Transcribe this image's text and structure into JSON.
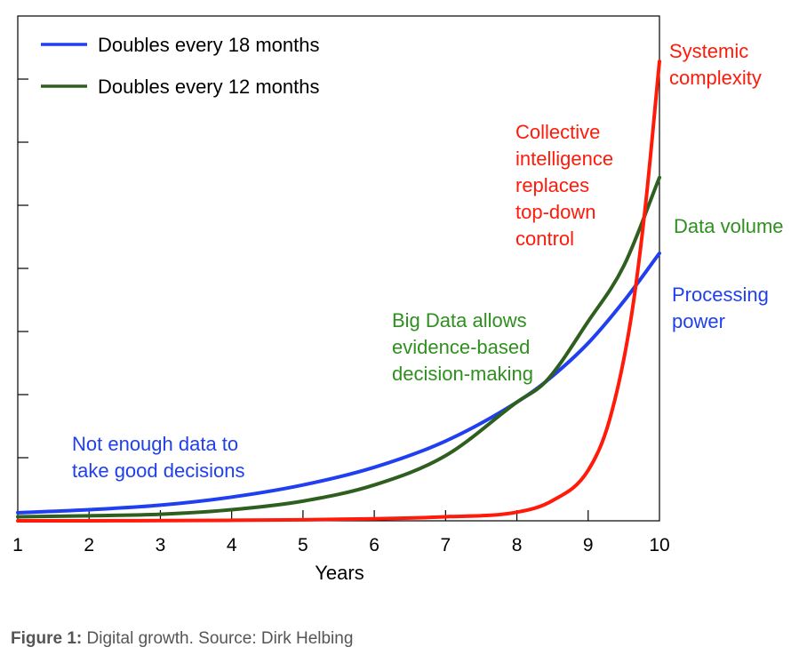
{
  "chart_data": {
    "type": "line",
    "xlabel": "Years",
    "ylabel": "",
    "xlim": [
      1,
      10
    ],
    "ylim": [
      0,
      1
    ],
    "x_ticks": [
      1,
      2,
      3,
      4,
      5,
      6,
      7,
      8,
      9,
      10
    ],
    "grid": false,
    "legend_position": "top-left",
    "legend": [
      {
        "label": "Doubles every 18 months",
        "color": "#1f3ff0"
      },
      {
        "label": "Doubles every 12 months",
        "color": "#2f5f1f"
      }
    ],
    "series": [
      {
        "label": "Processing power",
        "color": "#1f3ff0",
        "x": [
          1,
          2,
          3,
          4,
          5,
          6,
          7,
          8,
          8.4,
          9,
          9.5,
          10
        ],
        "y": [
          0.016,
          0.022,
          0.031,
          0.047,
          0.071,
          0.106,
          0.158,
          0.235,
          0.275,
          0.352,
          0.435,
          0.53
        ]
      },
      {
        "label": "Data volume",
        "color": "#2f5f1f",
        "x": [
          1,
          2,
          3,
          4,
          5,
          6,
          7,
          8,
          8.4,
          9,
          9.5,
          10
        ],
        "y": [
          0.008,
          0.01,
          0.013,
          0.022,
          0.039,
          0.071,
          0.129,
          0.235,
          0.275,
          0.395,
          0.505,
          0.68
        ]
      },
      {
        "label": "Systemic complexity",
        "color": "#ff1a0a",
        "x": [
          1,
          2,
          3,
          4,
          5,
          6,
          7,
          8,
          8.5,
          9,
          9.3,
          9.6,
          9.8,
          10
        ],
        "y": [
          0.0,
          0.0,
          0.0005,
          0.001,
          0.002,
          0.004,
          0.008,
          0.017,
          0.04,
          0.1,
          0.2,
          0.4,
          0.62,
          0.91
        ]
      }
    ],
    "annotations": [
      {
        "lines": [
          "Systemic",
          "complexity"
        ],
        "color": "#ff1a0a"
      },
      {
        "lines": [
          "Data volume"
        ],
        "color": "#2f8f1f"
      },
      {
        "lines": [
          "Processing",
          "power"
        ],
        "color": "#1f3ff0"
      },
      {
        "lines": [
          "Collective",
          "intelligence",
          "replaces",
          "top-down",
          "control"
        ],
        "color": "#ff1a0a"
      },
      {
        "lines": [
          "Big Data allows",
          "evidence-based",
          "decision-making"
        ],
        "color": "#2f8f1f"
      },
      {
        "lines": [
          "Not enough data to",
          "take good decisions"
        ],
        "color": "#1f3ff0"
      }
    ]
  },
  "caption": {
    "label": "Figure 1:",
    "text": " Digital growth. Source: Dirk Helbing"
  }
}
